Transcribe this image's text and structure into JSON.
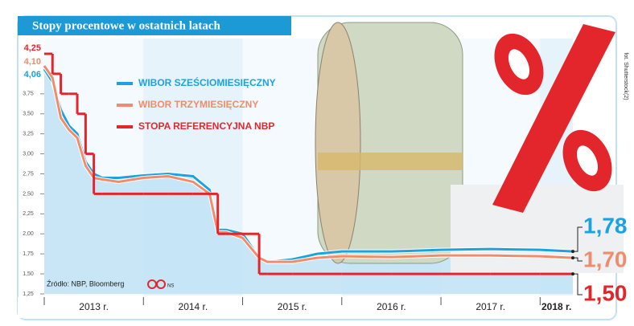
{
  "chart_data": {
    "type": "line",
    "title": "Stopy procentowe w ostatnich latach",
    "source": "Źródło: NBP, Bloomberg",
    "source_initials": "NS",
    "photo_credit": "fot. Shutterstock(2)",
    "x": [
      2013.0,
      2013.083,
      2013.167,
      2013.25,
      2013.333,
      2013.417,
      2013.5,
      2013.583,
      2013.75,
      2014.0,
      2014.25,
      2014.5,
      2014.667,
      2014.75,
      2014.833,
      2015.0,
      2015.167,
      2015.25,
      2015.5,
      2015.75,
      2016.0,
      2016.5,
      2017.0,
      2017.5,
      2018.0,
      2018.33
    ],
    "xlim": [
      2013,
      2018.33
    ],
    "xticks": [
      {
        "value": 2013,
        "label": "2013 r."
      },
      {
        "value": 2014,
        "label": "2014 r."
      },
      {
        "value": 2015,
        "label": "2015 r."
      },
      {
        "value": 2016,
        "label": "2016 r."
      },
      {
        "value": 2017,
        "label": "2017 r."
      },
      {
        "value": 2018,
        "label": "2018 r."
      }
    ],
    "ylim": [
      1.25,
      4.25
    ],
    "yticks": [
      {
        "value": 1.25,
        "label": "1,25"
      },
      {
        "value": 1.5,
        "label": "1,50"
      },
      {
        "value": 1.75,
        "label": "1,75"
      },
      {
        "value": 2,
        "label": "2,00"
      },
      {
        "value": 2.25,
        "label": "2,25"
      },
      {
        "value": 2.5,
        "label": "2,50"
      },
      {
        "value": 2.75,
        "label": "2,75"
      },
      {
        "value": 3,
        "label": "3,00"
      },
      {
        "value": 3.25,
        "label": "3,25"
      },
      {
        "value": 3.5,
        "label": "3,50"
      },
      {
        "value": 3.75,
        "label": "3,75"
      }
    ],
    "grid": false,
    "series": [
      {
        "name": "WIBOR SZEŚCIOMIESIĘCZNY",
        "color": "#1aa3e0",
        "area": true,
        "values": [
          4.06,
          3.9,
          3.55,
          3.35,
          3.25,
          2.9,
          2.75,
          2.7,
          2.7,
          2.73,
          2.75,
          2.72,
          2.55,
          2.05,
          2.05,
          2.0,
          1.7,
          1.65,
          1.68,
          1.75,
          1.78,
          1.78,
          1.8,
          1.81,
          1.8,
          1.78
        ],
        "value_labels": [
          "4,06",
          null,
          null,
          null,
          null,
          null,
          null,
          null,
          null,
          null,
          null,
          null,
          null,
          null,
          null,
          null,
          null,
          null,
          null,
          null,
          null,
          null,
          null,
          null,
          null,
          "1,78"
        ]
      },
      {
        "name": "WIBOR TRZYMIESIĘCZNY",
        "color": "#f08c6c",
        "values": [
          4.1,
          3.95,
          3.45,
          3.3,
          3.2,
          2.85,
          2.7,
          2.68,
          2.65,
          2.7,
          2.72,
          2.65,
          2.5,
          2.02,
          2.02,
          1.95,
          1.7,
          1.65,
          1.65,
          1.7,
          1.72,
          1.71,
          1.73,
          1.73,
          1.72,
          1.7
        ],
        "value_labels": [
          "4,10",
          null,
          null,
          null,
          null,
          null,
          null,
          null,
          null,
          null,
          null,
          null,
          null,
          null,
          null,
          null,
          null,
          null,
          null,
          null,
          null,
          null,
          null,
          null,
          null,
          "1,70"
        ]
      },
      {
        "name": "STOPA REFERENCYJNA NBP",
        "color": "#e3262c",
        "step": true,
        "values": [
          4.25,
          4.0,
          3.75,
          3.75,
          3.5,
          3.0,
          2.5,
          2.5,
          2.5,
          2.5,
          2.5,
          2.5,
          2.5,
          2.0,
          2.0,
          2.0,
          1.5,
          1.5,
          1.5,
          1.5,
          1.5,
          1.5,
          1.5,
          1.5,
          1.5,
          1.5
        ],
        "value_labels": [
          "4,25",
          null,
          null,
          null,
          null,
          null,
          null,
          null,
          null,
          null,
          null,
          null,
          null,
          null,
          null,
          null,
          null,
          null,
          null,
          null,
          null,
          null,
          null,
          null,
          null,
          "1,50"
        ]
      }
    ]
  }
}
